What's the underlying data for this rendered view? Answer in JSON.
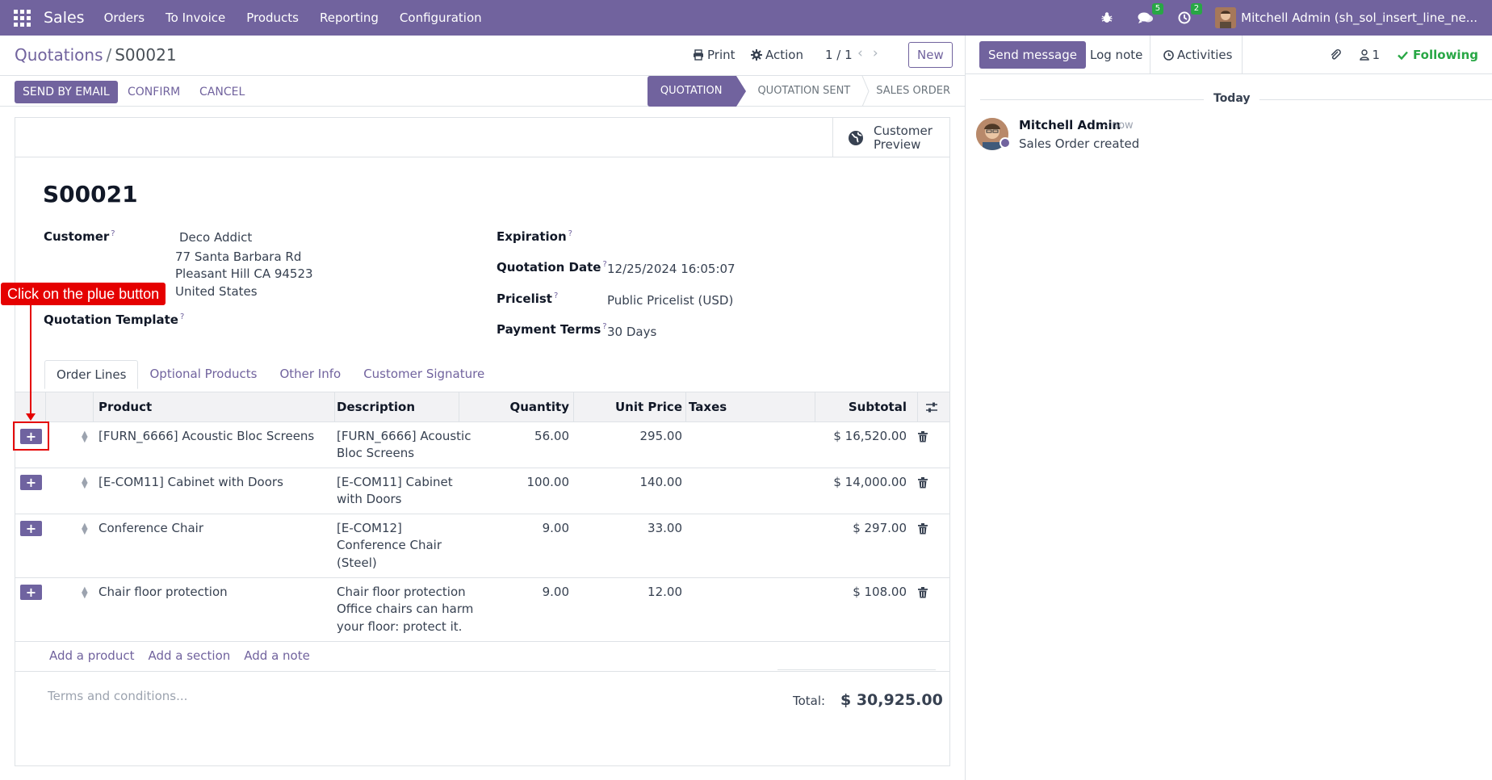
{
  "navbar": {
    "app_name": "Sales",
    "menu": [
      "Orders",
      "To Invoice",
      "Products",
      "Reporting",
      "Configuration"
    ],
    "messages_count": "5",
    "activities_count": "2",
    "user": "Mitchell Admin (sh_sol_insert_line_ne..."
  },
  "control": {
    "breadcrumb_parent": "Quotations",
    "breadcrumb_sep": "/",
    "breadcrumb_current": "S00021",
    "print_label": "Print",
    "action_label": "Action",
    "pager": "1 / 1",
    "new_label": "New"
  },
  "statusbar": {
    "buttons": [
      "SEND BY EMAIL",
      "CONFIRM",
      "CANCEL"
    ],
    "stages": [
      "QUOTATION",
      "QUOTATION SENT",
      "SALES ORDER"
    ],
    "active_stage": "QUOTATION"
  },
  "form": {
    "preview_label": "Customer Preview",
    "record_name": "S00021",
    "customer_label": "Customer",
    "customer_name": "Deco Addict",
    "customer_address": [
      "77 Santa Barbara Rd",
      "Pleasant Hill CA 94523",
      "United States"
    ],
    "template_label": "Quotation Template",
    "expiration_label": "Expiration",
    "quotation_date_label": "Quotation Date",
    "quotation_date": "12/25/2024 16:05:07",
    "pricelist_label": "Pricelist",
    "pricelist": "Public Pricelist (USD)",
    "payment_terms_label": "Payment Terms",
    "payment_terms": "30 Days",
    "help_mark": "?"
  },
  "tabs": [
    "Order Lines",
    "Optional Products",
    "Other Info",
    "Customer Signature"
  ],
  "table": {
    "headers": {
      "product": "Product",
      "description": "Description",
      "quantity": "Quantity",
      "unit_price": "Unit Price",
      "taxes": "Taxes",
      "subtotal": "Subtotal"
    },
    "rows": [
      {
        "product": "[FURN_6666] Acoustic Bloc Screens",
        "description": [
          "[FURN_6666] Acoustic",
          "Bloc Screens"
        ],
        "quantity": "56.00",
        "unit_price": "295.00",
        "subtotal": "$ 16,520.00"
      },
      {
        "product": "[E-COM11] Cabinet with Doors",
        "description": [
          "[E-COM11] Cabinet",
          "with Doors"
        ],
        "quantity": "100.00",
        "unit_price": "140.00",
        "subtotal": "$ 14,000.00"
      },
      {
        "product": "Conference Chair",
        "description": [
          "[E-COM12]",
          "Conference Chair",
          "(Steel)"
        ],
        "quantity": "9.00",
        "unit_price": "33.00",
        "subtotal": "$ 297.00"
      },
      {
        "product": "Chair floor protection",
        "description": [
          "Chair floor protection",
          "Office chairs can harm",
          "your floor: protect it."
        ],
        "quantity": "9.00",
        "unit_price": "12.00",
        "subtotal": "$ 108.00"
      }
    ],
    "add_links": [
      "Add a product",
      "Add a section",
      "Add a note"
    ]
  },
  "footer": {
    "terms_placeholder": "Terms and conditions...",
    "total_label": "Total:",
    "total_value": "$ 30,925.00"
  },
  "annotation": {
    "text": "Click on the plue button",
    "color": "#e50000"
  },
  "chatter": {
    "send_message": "Send message",
    "log_note": "Log note",
    "activities": "Activities",
    "followers_count": "1",
    "following": "Following",
    "date_separator": "Today",
    "message": {
      "author": "Mitchell Admin",
      "date": "- now",
      "body": "Sales Order created"
    }
  },
  "colors": {
    "brand": "#71639e",
    "success": "#28a745",
    "annotation": "#e50000"
  }
}
